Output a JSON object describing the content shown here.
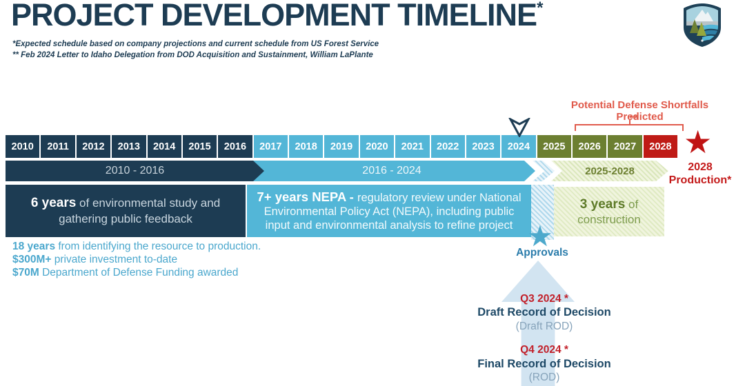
{
  "header": {
    "title": "PROJECT DEVELOPMENT TIMELINE",
    "title_marker": "*",
    "footnote1": "*Expected schedule based on company projections and current schedule from US Forest Service",
    "footnote2": "** Feb 2024 Letter to Idaho Delegation from DOD Acquisition and Sustainment, William LaPlante",
    "logo_icon": "mountain-shield-logo"
  },
  "colors": {
    "navy": "#1d3c53",
    "light_blue": "#53b6d7",
    "olive": "#6c7f31",
    "red": "#bf1b16",
    "salmon": "#e05a4b",
    "stat_blue": "#4aa7cd"
  },
  "shortfall": {
    "label": "Potential Defense Shortfalls Predicted",
    "marker": "**"
  },
  "timeline": {
    "years": [
      {
        "label": "2010",
        "phase": "navy"
      },
      {
        "label": "2011",
        "phase": "navy"
      },
      {
        "label": "2012",
        "phase": "navy"
      },
      {
        "label": "2013",
        "phase": "navy"
      },
      {
        "label": "2014",
        "phase": "navy"
      },
      {
        "label": "2015",
        "phase": "navy"
      },
      {
        "label": "2016",
        "phase": "navy"
      },
      {
        "label": "2017",
        "phase": "blue"
      },
      {
        "label": "2018",
        "phase": "blue"
      },
      {
        "label": "2019",
        "phase": "blue"
      },
      {
        "label": "2020",
        "phase": "blue"
      },
      {
        "label": "2021",
        "phase": "blue"
      },
      {
        "label": "2022",
        "phase": "blue"
      },
      {
        "label": "2023",
        "phase": "blue"
      },
      {
        "label": "2024",
        "phase": "blue"
      },
      {
        "label": "2025",
        "phase": "olive"
      },
      {
        "label": "2026",
        "phase": "olive"
      },
      {
        "label": "2027",
        "phase": "olive"
      },
      {
        "label": "2028",
        "phase": "red"
      }
    ],
    "current_position_year": "2024"
  },
  "phases": {
    "p1": {
      "label": "2010 - 2016"
    },
    "p2": {
      "label": "2016 - 2024"
    },
    "p3": {
      "label": "2025-2028"
    }
  },
  "blocks": {
    "study": {
      "bold": "6 years",
      "rest": " of environmental study and gathering public feedback"
    },
    "nepa": {
      "bold": "7+ years NEPA - ",
      "rest": "regulatory review under National Environmental Policy Act (NEPA), including public input and environmental analysis to refine project"
    },
    "construction": {
      "bold": "3 years",
      "rest": " of construction"
    }
  },
  "stats": [
    {
      "bold": "18 years",
      "rest": " from identifying the resource to production."
    },
    {
      "bold": "$300M+",
      "rest": " private investment to-date"
    },
    {
      "bold": "$70M",
      "rest": " Department of Defense Funding awarded"
    }
  ],
  "production": {
    "star_glyph": "★",
    "line1": "2028",
    "line2": "Production*"
  },
  "approvals": {
    "star_glyph": "★",
    "label": "Approvals"
  },
  "rod": [
    {
      "quarter": "Q3 2024 *",
      "title": "Draft Record of Decision",
      "sub": "(Draft ROD)"
    },
    {
      "quarter": "Q4 2024 *",
      "title": "Final Record of Decision",
      "sub": "(ROD)"
    }
  ]
}
